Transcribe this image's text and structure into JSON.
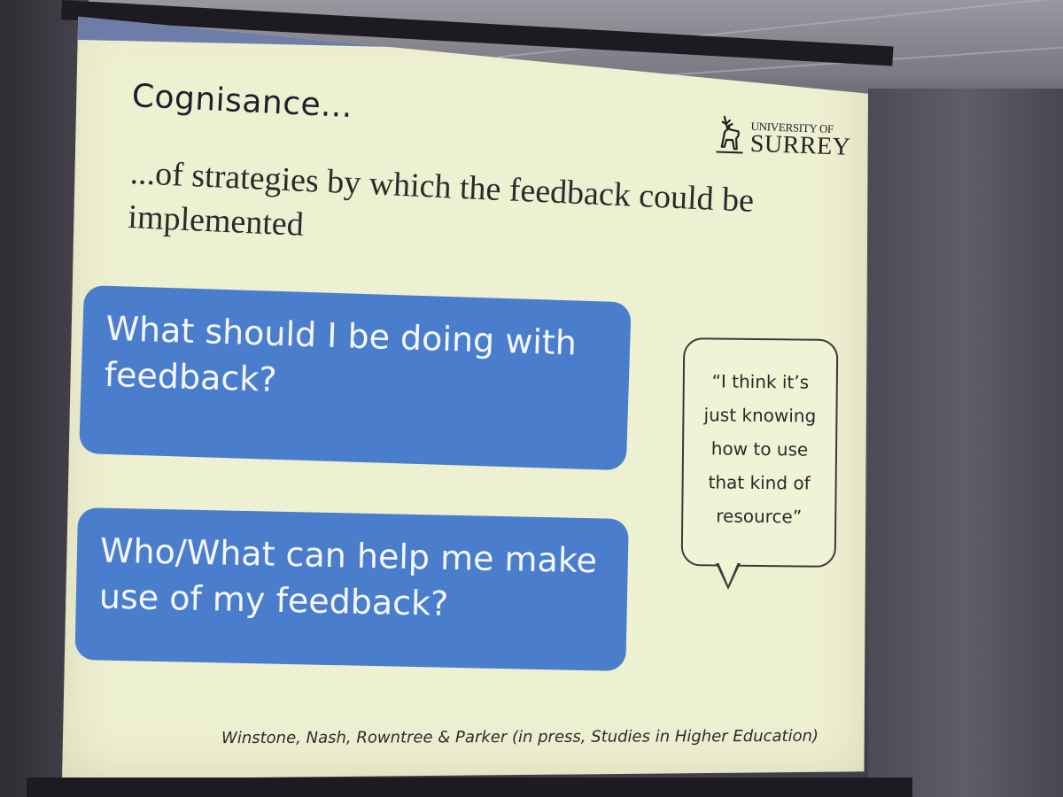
{
  "slide": {
    "title": "Cognisance...",
    "subtitle": "...of strategies by which the feedback could be implemented",
    "logo": {
      "line1": "UNIVERSITY OF",
      "line2": "SURREY",
      "icon": "stag-icon"
    },
    "boxes": [
      {
        "text": "What should I be doing with feedback?"
      },
      {
        "text": "Who/What can help me make use of my feedback?"
      }
    ],
    "quote": "“I think it’s just knowing how to use that kind of resource”",
    "citation": "Winstone, Nash, Rowntree & Parker (in press, Studies in Higher Education)"
  },
  "colors": {
    "slide_background": "#eef0d2",
    "header_band": "#7382ad",
    "box_blue": "#4a7ecd",
    "box_text": "#f4f7ff"
  }
}
